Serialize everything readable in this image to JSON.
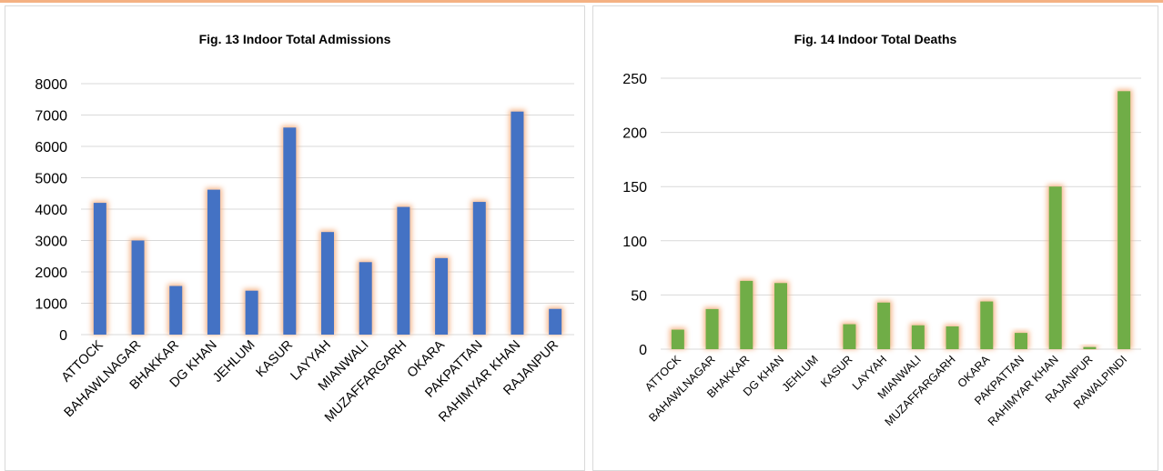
{
  "chart_data": [
    {
      "type": "bar",
      "title": "Fig. 13 Indoor Total Admissions",
      "categories": [
        "ATTOCK",
        "BAHAWLNAGAR",
        "BHAKKAR",
        "DG KHAN",
        "JEHLUM",
        "KASUR",
        "LAYYAH",
        "MIANWALI",
        "MUZAFFARGARH",
        "OKARA",
        "PAKPATTAN",
        "RAHIMYAR KHAN",
        "RAJANPUR"
      ],
      "values": [
        4200,
        3000,
        1550,
        4620,
        1400,
        6600,
        3270,
        2310,
        4070,
        2440,
        4230,
        7110,
        820
      ],
      "ylim": [
        0,
        8000
      ],
      "yticks": [
        0,
        1000,
        2000,
        3000,
        4000,
        5000,
        6000,
        7000,
        8000
      ],
      "xlabel": "",
      "ylabel": "",
      "grid": true,
      "colors": {
        "bar": "#4472c4",
        "glow": "#f4b183",
        "grid": "#d9d9d9"
      }
    },
    {
      "type": "bar",
      "title": "Fig. 14 Indoor Total Deaths",
      "categories": [
        "ATTOCK",
        "BAHAWLNAGAR",
        "BHAKKAR",
        "DG KHAN",
        "JEHLUM",
        "KASUR",
        "LAYYAH",
        "MIANWALI",
        "MUZAFFARGARH",
        "OKARA",
        "PAKPATTAN",
        "RAHIMYAR KHAN",
        "RAJANPUR",
        "RAWALPINDI"
      ],
      "values": [
        18,
        37,
        63,
        61,
        0,
        23,
        43,
        22,
        21,
        44,
        15,
        150,
        2,
        238
      ],
      "ylim": [
        0,
        250
      ],
      "yticks": [
        0,
        50,
        100,
        150,
        200,
        250
      ],
      "xlabel": "",
      "ylabel": "",
      "grid": true,
      "colors": {
        "bar": "#70ad47",
        "glow": "#f4b183",
        "grid": "#d9d9d9"
      }
    }
  ]
}
